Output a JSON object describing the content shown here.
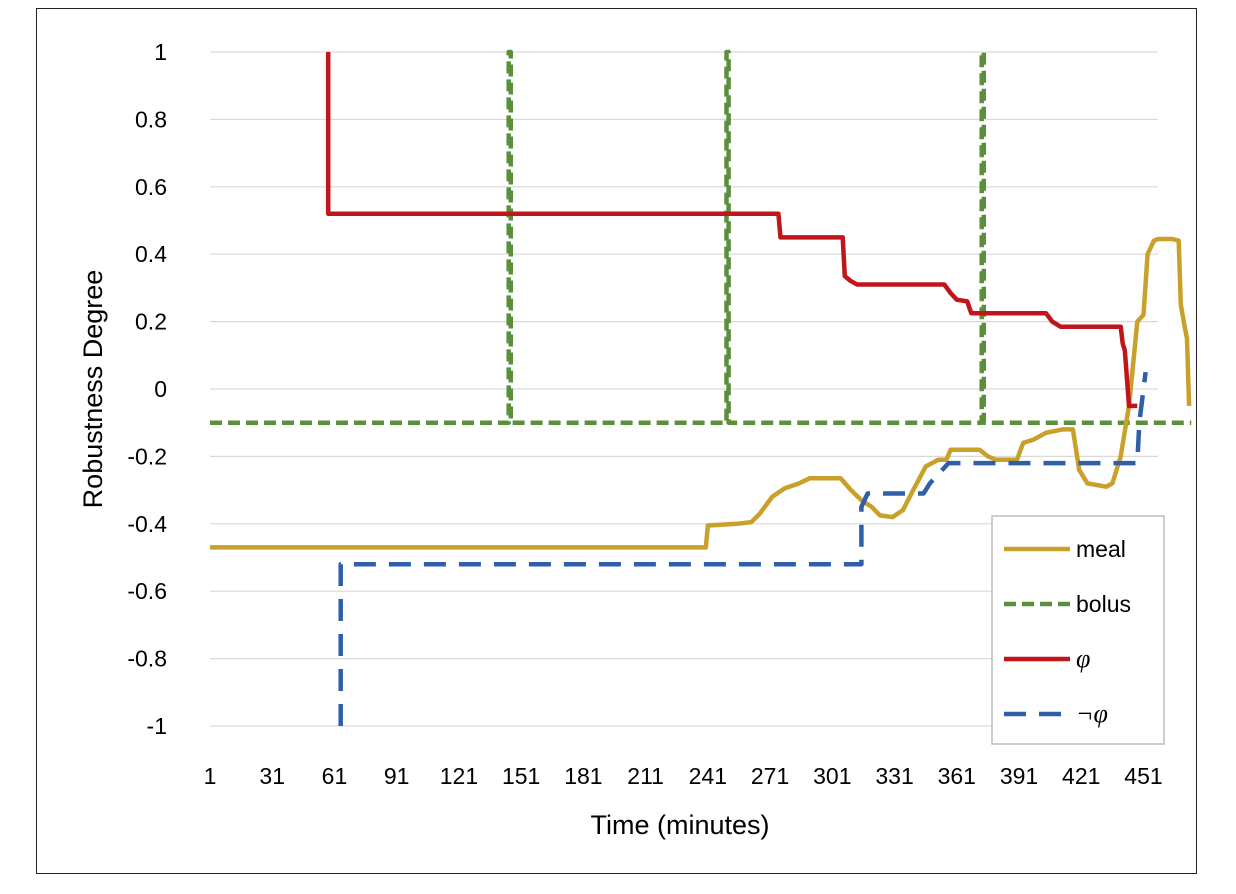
{
  "chart_data": {
    "type": "line",
    "title": "",
    "xlabel": "Time (minutes)",
    "ylabel": "Robustness Degree",
    "xlim": [
      1,
      458
    ],
    "ylim": [
      -1,
      1
    ],
    "x_ticks": [
      "1",
      "31",
      "61",
      "91",
      "121",
      "151",
      "181",
      "211",
      "241",
      "271",
      "301",
      "331",
      "361",
      "391",
      "421",
      "451"
    ],
    "y_ticks": [
      "1",
      "0.8",
      "0.6",
      "0.4",
      "0.2",
      "0",
      "-0.2",
      "-0.4",
      "-0.6",
      "-0.8",
      "-1"
    ],
    "grid": "horizontal",
    "legend_position": "bottom-right",
    "series": [
      {
        "name": "meal",
        "color": "#C9A02A",
        "style": "solid",
        "points": [
          [
            1,
            -0.47
          ],
          [
            240,
            -0.47
          ],
          [
            241,
            -0.405
          ],
          [
            255,
            -0.4
          ],
          [
            262,
            -0.395
          ],
          [
            266,
            -0.37
          ],
          [
            272,
            -0.32
          ],
          [
            278,
            -0.295
          ],
          [
            285,
            -0.28
          ],
          [
            290,
            -0.265
          ],
          [
            305,
            -0.265
          ],
          [
            310,
            -0.3
          ],
          [
            315,
            -0.33
          ],
          [
            320,
            -0.35
          ],
          [
            324,
            -0.375
          ],
          [
            330,
            -0.38
          ],
          [
            335,
            -0.36
          ],
          [
            340,
            -0.3
          ],
          [
            346,
            -0.23
          ],
          [
            352,
            -0.21
          ],
          [
            356,
            -0.21
          ],
          [
            358,
            -0.18
          ],
          [
            372,
            -0.18
          ],
          [
            376,
            -0.2
          ],
          [
            380,
            -0.21
          ],
          [
            390,
            -0.21
          ],
          [
            393,
            -0.16
          ],
          [
            398,
            -0.15
          ],
          [
            404,
            -0.13
          ],
          [
            412,
            -0.12
          ],
          [
            417,
            -0.12
          ],
          [
            420,
            -0.24
          ],
          [
            424,
            -0.28
          ],
          [
            433,
            -0.29
          ],
          [
            436,
            -0.28
          ],
          [
            440,
            -0.2
          ],
          [
            444,
            -0.05
          ],
          [
            448,
            0.2
          ],
          [
            451,
            0.22
          ],
          [
            453,
            0.4
          ],
          [
            456,
            0.44
          ],
          [
            458,
            0.445
          ],
          [
            465,
            0.445
          ],
          [
            468,
            0.44
          ],
          [
            469,
            0.25
          ],
          [
            471,
            0.18
          ],
          [
            472,
            0.15
          ],
          [
            473,
            -0.05
          ]
        ]
      },
      {
        "name": "bolus",
        "color": "#5B8F3B",
        "style": "dashed",
        "points": [
          [
            1,
            -0.1
          ],
          [
            145,
            -0.1
          ],
          [
            145,
            1
          ],
          [
            146,
            1
          ],
          [
            146,
            -0.1
          ],
          [
            250,
            -0.1
          ],
          [
            250,
            1
          ],
          [
            251,
            1
          ],
          [
            251,
            -0.1
          ],
          [
            373,
            -0.1
          ],
          [
            373,
            1
          ],
          [
            374,
            1
          ],
          [
            374,
            -0.1
          ],
          [
            474,
            -0.1
          ]
        ]
      },
      {
        "name": "φ",
        "color": "#C0151B",
        "style": "solid",
        "points": [
          [
            58,
            1
          ],
          [
            58,
            0.52
          ],
          [
            275,
            0.52
          ],
          [
            276,
            0.45
          ],
          [
            306,
            0.45
          ],
          [
            307,
            0.335
          ],
          [
            310,
            0.32
          ],
          [
            313,
            0.31
          ],
          [
            355,
            0.31
          ],
          [
            358,
            0.285
          ],
          [
            361,
            0.265
          ],
          [
            366,
            0.26
          ],
          [
            368,
            0.225
          ],
          [
            404,
            0.225
          ],
          [
            407,
            0.2
          ],
          [
            411,
            0.185
          ],
          [
            440,
            0.185
          ],
          [
            441,
            0.135
          ],
          [
            442,
            0.115
          ],
          [
            444,
            -0.05
          ],
          [
            448,
            -0.05
          ]
        ]
      },
      {
        "name": "¬φ",
        "color": "#2E5FA8",
        "style": "dashed",
        "points": [
          [
            64,
            -1
          ],
          [
            64,
            -0.52
          ],
          [
            315,
            -0.52
          ],
          [
            315,
            -0.35
          ],
          [
            318,
            -0.31
          ],
          [
            345,
            -0.31
          ],
          [
            348,
            -0.28
          ],
          [
            357,
            -0.22
          ],
          [
            448,
            -0.22
          ],
          [
            449,
            -0.1
          ],
          [
            452,
            0.05
          ]
        ]
      }
    ]
  }
}
